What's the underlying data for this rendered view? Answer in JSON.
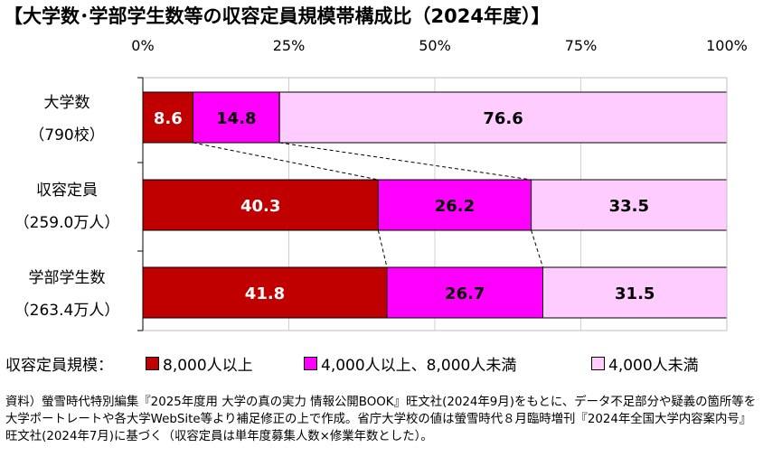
{
  "title": "【大学数･学部学生数等の収容定員規模帯構成比（2024年度）】",
  "chart_data": {
    "type": "bar",
    "orientation": "horizontal",
    "stacked": "percent",
    "xlim": [
      0,
      100
    ],
    "x_ticks": [
      "0%",
      "25%",
      "50%",
      "75%",
      "100%"
    ],
    "grid": true,
    "legend_position": "bottom",
    "categories": [
      {
        "label": "大学数",
        "sub": "（790校）"
      },
      {
        "label": "収容定員",
        "sub": "（259.0万人）"
      },
      {
        "label": "学部学生数",
        "sub": "（263.4万人）"
      }
    ],
    "series": [
      {
        "name": "8,000人以上",
        "values": [
          8.6,
          40.3,
          41.8
        ],
        "color": "#c00000",
        "label_color": "#ffffff"
      },
      {
        "name": "4,000人以上、8,000人未満",
        "values": [
          14.8,
          26.2,
          26.7
        ],
        "color": "#ff00ff",
        "label_color": "#000000"
      },
      {
        "name": "4,000人未満",
        "values": [
          76.6,
          33.5,
          31.5
        ],
        "color": "#ffccff",
        "label_color": "#000000"
      }
    ]
  },
  "legend": {
    "title": "収容定員規模："
  },
  "note": "資料）螢雪時代特別編集『2025年度用 大学の真の実力 情報公開BOOK』旺文社(2024年9月)をもとに、データ不足部分や疑義の箇所等を大学ポートレートや各大学WebSite等より補足修正の上で作成。省庁大学校の値は螢雪時代８月臨時増刊『2024年全国大学内容案内号』旺文社(2024年7月)に基づく（収容定員は単年度募集人数×修業年数とした）。"
}
